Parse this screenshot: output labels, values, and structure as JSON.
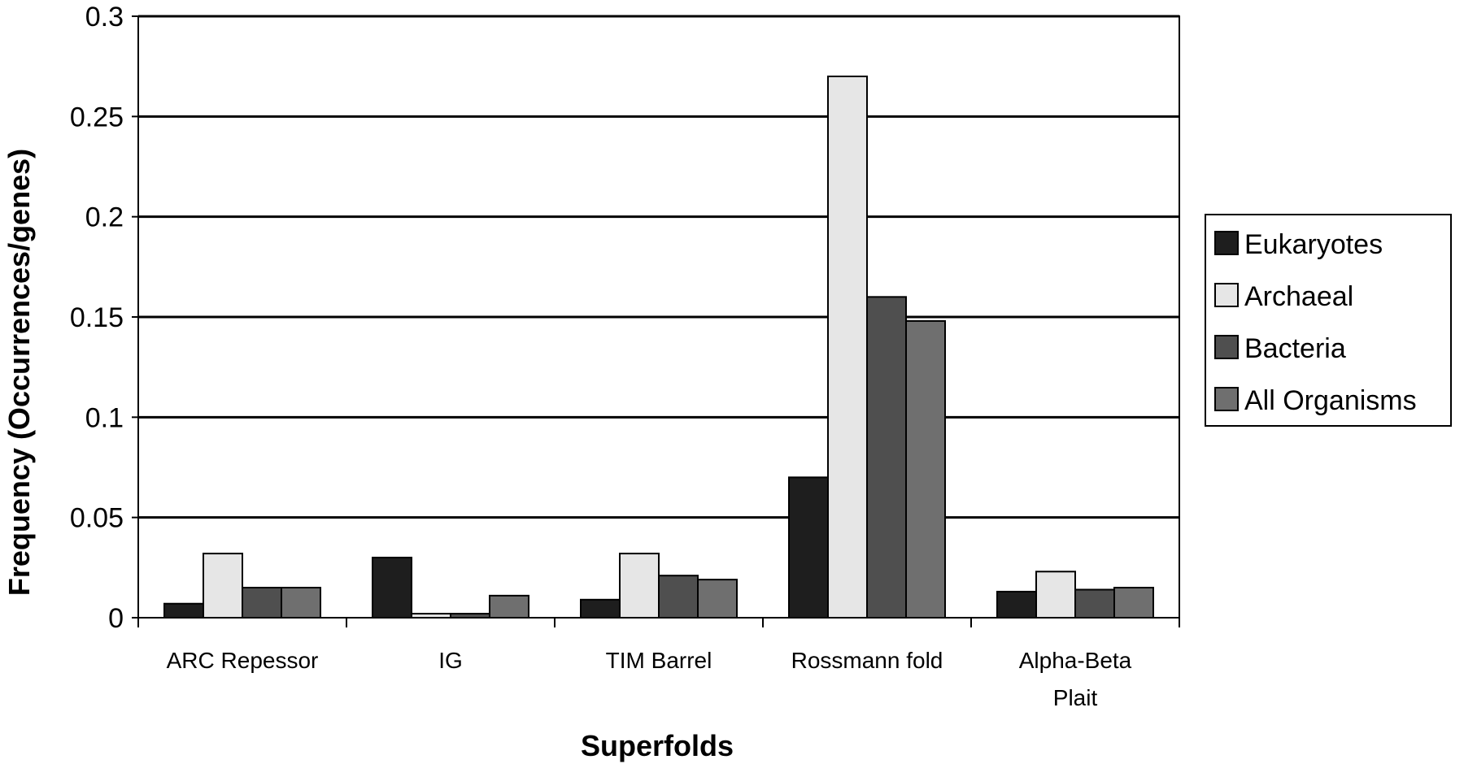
{
  "chart_data": {
    "type": "bar",
    "categories": [
      [
        "ARC Repessor"
      ],
      [
        "IG"
      ],
      [
        "TIM Barrel"
      ],
      [
        "Rossmann fold"
      ],
      [
        "Alpha-Beta",
        "Plait"
      ]
    ],
    "series": [
      {
        "name": "Eukaryotes",
        "color": "#1e1e1e",
        "values": [
          0.007,
          0.03,
          0.009,
          0.07,
          0.013
        ]
      },
      {
        "name": "Archaeal",
        "color": "#e6e6e6",
        "values": [
          0.032,
          0.002,
          0.032,
          0.27,
          0.023
        ]
      },
      {
        "name": "Bacteria",
        "color": "#4f4f4f",
        "values": [
          0.015,
          0.002,
          0.021,
          0.16,
          0.014
        ]
      },
      {
        "name": "All Organisms",
        "color": "#6f6f6f",
        "values": [
          0.015,
          0.011,
          0.019,
          0.148,
          0.015
        ]
      }
    ],
    "yticks": [
      "0",
      "0.05",
      "0.1",
      "0.15",
      "0.2",
      "0.25",
      "0.3"
    ],
    "ylim": [
      0,
      0.3
    ],
    "xlabel": "Superfolds",
    "ylabel": "Frequency (Occurrences/genes)",
    "grid": true,
    "legend_position": "right"
  }
}
